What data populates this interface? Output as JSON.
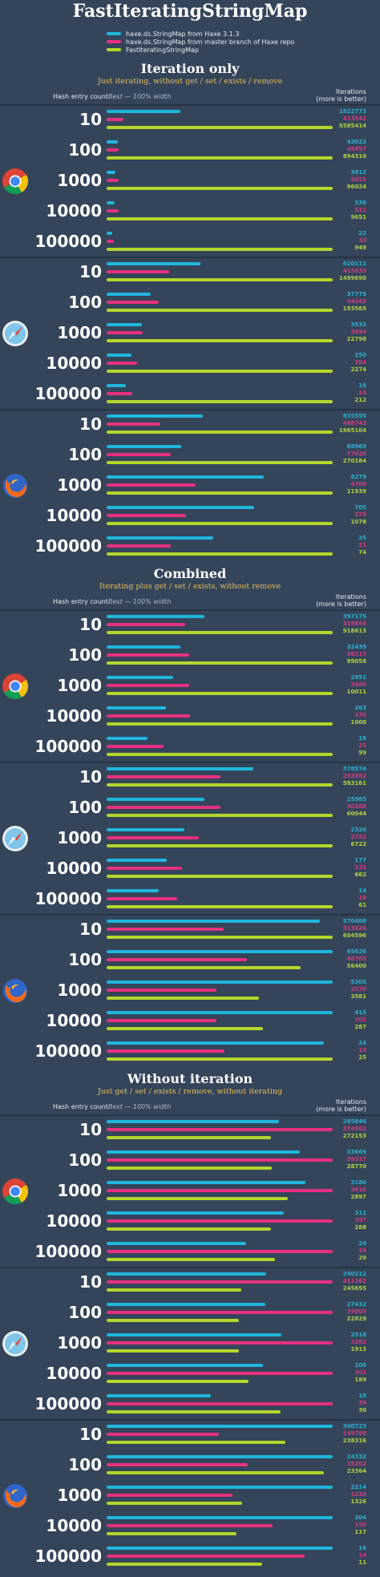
{
  "page": {
    "title": "FastIteratingStringMap",
    "legend": [
      {
        "label": "haxe.ds.StringMap from Haxe 3.1.3",
        "color": "#1fb6de"
      },
      {
        "label": "haxe.ds.StringMap from master branch of Haxe repo",
        "color": "#e8307e"
      },
      {
        "label": "FastIteratingStringMap",
        "color": "#b4d72a"
      }
    ],
    "columns": {
      "hash_count": "Hash entry count",
      "best": "Best — 100% width",
      "iterations_line1": "Iterations",
      "iterations_line2": "(more is better)"
    }
  },
  "chart_data": {
    "type": "bar",
    "orientation": "horizontal",
    "title": "FastIteratingStringMap",
    "series_names": [
      "haxe.ds.StringMap from Haxe 3.1.3",
      "haxe.ds.StringMap from master branch of Haxe repo",
      "FastIteratingStringMap"
    ],
    "series_colors": [
      "#1fb6de",
      "#e8307e",
      "#b4d72a"
    ],
    "sections": [
      {
        "title": "Iteration only",
        "subtitle": "Just iterating, without get / set / exists / remove",
        "browsers": [
          {
            "icon": "chrome-icon",
            "rows": [
              {
                "count": "10",
                "values": [
                  1822773,
                  413541,
                  5585414
                ]
              },
              {
                "count": "100",
                "values": [
                  43022,
                  48857,
                  894310
                ]
              },
              {
                "count": "1000",
                "values": [
                  3812,
                  5025,
                  96024
                ]
              },
              {
                "count": "10000",
                "values": [
                  336,
                  511,
                  9651
                ]
              },
              {
                "count": "100000",
                "values": [
                  22,
                  30,
                  949
                ]
              }
            ]
          },
          {
            "icon": "safari-icon",
            "rows": [
              {
                "count": "10",
                "values": [
                  620111,
                  415039,
                  1499690
                ]
              },
              {
                "count": "100",
                "values": [
                  37775,
                  44343,
                  193565
                ]
              },
              {
                "count": "1000",
                "values": [
                  3533,
                  3634,
                  22798
                ]
              },
              {
                "count": "10000",
                "values": [
                  250,
                  304,
                  2274
                ]
              },
              {
                "count": "100000",
                "values": [
                  18,
                  24,
                  212
                ]
              }
            ]
          },
          {
            "icon": "firefox-icon",
            "rows": [
              {
                "count": "10",
                "values": [
                  835555,
                  468743,
                  1965104
                ]
              },
              {
                "count": "100",
                "values": [
                  88969,
                  77020,
                  270184
                ]
              },
              {
                "count": "1000",
                "values": [
                  8279,
                  4709,
                  11939
                ]
              },
              {
                "count": "10000",
                "values": [
                  705,
                  378,
                  1078
                ]
              },
              {
                "count": "100000",
                "values": [
                  35,
                  21,
                  74
                ]
              }
            ]
          }
        ]
      },
      {
        "title": "Combined",
        "subtitle": "Iterating plus get / set / exists, without remove",
        "browsers": [
          {
            "icon": "chrome-icon",
            "rows": [
              {
                "count": "10",
                "values": [
                  397175,
                  319856,
                  918613
                ]
              },
              {
                "count": "100",
                "values": [
                  32439,
                  36117,
                  99058
                ]
              },
              {
                "count": "1000",
                "values": [
                  2951,
                  3666,
                  10011
                ]
              },
              {
                "count": "10000",
                "values": [
                  263,
                  370,
                  1000
                ]
              },
              {
                "count": "100000",
                "values": [
                  18,
                  25,
                  99
                ]
              }
            ]
          },
          {
            "icon": "safari-icon",
            "rows": [
              {
                "count": "10",
                "values": [
                  378574,
                  293882,
                  583161
                ]
              },
              {
                "count": "100",
                "values": [
                  25985,
                  30268,
                  60044
                ]
              },
              {
                "count": "1000",
                "values": [
                  2320,
                  2732,
                  6722
                ]
              },
              {
                "count": "10000",
                "values": [
                  177,
                  221,
                  662
                ]
              },
              {
                "count": "100000",
                "values": [
                  14,
                  19,
                  61
                ]
              }
            ]
          },
          {
            "icon": "firefox-icon",
            "rows": [
              {
                "count": "10",
                "values": [
                  570488,
                  313626,
                  604596
                ]
              },
              {
                "count": "100",
                "values": [
                  65626,
                  40705,
                  56400
                ]
              },
              {
                "count": "1000",
                "values": [
                  5305,
                  2570,
                  3581
                ]
              },
              {
                "count": "10000",
                "values": [
                  415,
                  201,
                  287
                ]
              },
              {
                "count": "100000",
                "values": [
                  24,
                  13,
                  25
                ]
              }
            ]
          }
        ]
      },
      {
        "title": "Without iteration",
        "subtitle": "Just get / set / exists / remove, without iterating",
        "browsers": [
          {
            "icon": "chrome-icon",
            "rows": [
              {
                "count": "10",
                "values": [
                  285846,
                  374582,
                  272153
                ]
              },
              {
                "count": "100",
                "values": [
                  33669,
                  39317,
                  28770
                ]
              },
              {
                "count": "1000",
                "values": [
                  3186,
                  3616,
                  2897
                ]
              },
              {
                "count": "10000",
                "values": [
                  311,
                  397,
                  288
                ]
              },
              {
                "count": "100000",
                "values": [
                  24,
                  39,
                  29
                ]
              }
            ]
          },
          {
            "icon": "safari-icon",
            "rows": [
              {
                "count": "10",
                "values": [
                  290212,
                  411362,
                  245655
                ]
              },
              {
                "count": "100",
                "values": [
                  27432,
                  39009,
                  22829
                ]
              },
              {
                "count": "1000",
                "values": [
                  2518,
                  3261,
                  1913
                ]
              },
              {
                "count": "10000",
                "values": [
                  208,
                  301,
                  189
                ]
              },
              {
                "count": "100000",
                "values": [
                  18,
                  39,
                  30
                ]
              }
            ]
          },
          {
            "icon": "firefox-icon",
            "rows": [
              {
                "count": "10",
                "values": [
                  300723,
                  149788,
                  238316
                ]
              },
              {
                "count": "100",
                "values": [
                  24332,
                  15202,
                  23364
                ]
              },
              {
                "count": "1000",
                "values": [
                  2214,
                  1230,
                  1326
                ]
              },
              {
                "count": "10000",
                "values": [
                  204,
                  150,
                  117
                ]
              },
              {
                "count": "100000",
                "values": [
                  16,
                  14,
                  11
                ]
              }
            ]
          }
        ]
      }
    ]
  }
}
